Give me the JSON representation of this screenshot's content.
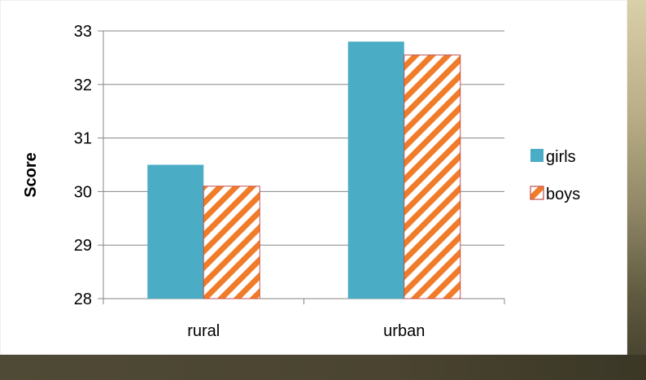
{
  "chart_data": {
    "type": "bar",
    "categories": [
      "rural",
      "urban"
    ],
    "series": [
      {
        "name": "girls",
        "values": [
          30.5,
          32.8
        ],
        "color": "#4bacc6",
        "pattern": "solid"
      },
      {
        "name": "boys",
        "values": [
          30.1,
          32.55
        ],
        "color": "#f07c2a",
        "pattern": "diagonal-stripes"
      }
    ],
    "ylabel": "Score",
    "xlabel": "",
    "ylim": [
      28,
      33
    ],
    "yticks": [
      "28",
      "29",
      "30",
      "31",
      "32",
      "33"
    ],
    "grid": true,
    "legend_position": "right"
  }
}
